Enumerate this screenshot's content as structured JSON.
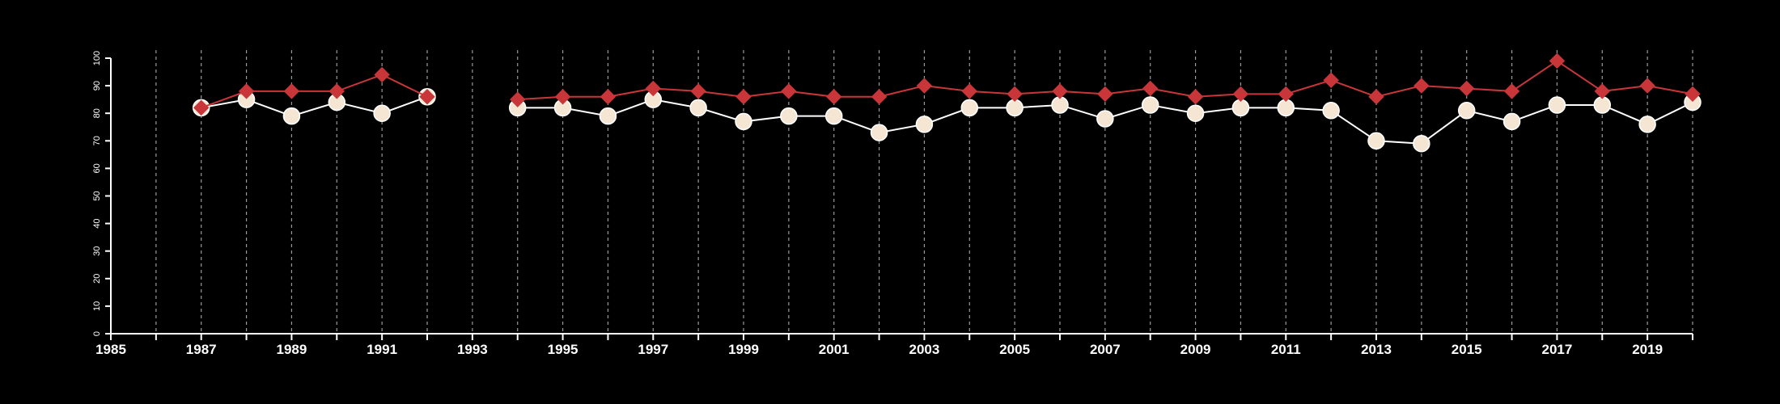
{
  "chart_data": {
    "type": "line",
    "title": "",
    "xlabel": "",
    "ylabel": "",
    "xlim": [
      1985,
      2020
    ],
    "ylim": [
      0,
      100
    ],
    "x_ticks": [
      "1985",
      "1987",
      "1989",
      "1991",
      "1993",
      "1995",
      "1997",
      "1999",
      "2001",
      "2003",
      "2005",
      "2007",
      "2009",
      "2011",
      "2013",
      "2015",
      "2017",
      "2019"
    ],
    "y_ticks": [
      "0",
      "10",
      "20",
      "30",
      "40",
      "50",
      "60",
      "70",
      "80",
      "90",
      "100"
    ],
    "grid": "vertical dashed lines at every year",
    "legend": "none",
    "series": [
      {
        "marker": "diamond",
        "color": "#c8363a",
        "points": [
          [
            1987,
            82
          ],
          [
            1988,
            88
          ],
          [
            1989,
            88
          ],
          [
            1990,
            88
          ],
          [
            1991,
            94
          ],
          [
            1992,
            86
          ],
          [
            1994,
            85
          ],
          [
            1995,
            86
          ],
          [
            1996,
            86
          ],
          [
            1997,
            89
          ],
          [
            1998,
            88
          ],
          [
            1999,
            86
          ],
          [
            2000,
            88
          ],
          [
            2001,
            86
          ],
          [
            2002,
            86
          ],
          [
            2003,
            90
          ],
          [
            2004,
            88
          ],
          [
            2005,
            87
          ],
          [
            2006,
            88
          ],
          [
            2007,
            87
          ],
          [
            2008,
            89
          ],
          [
            2009,
            86
          ],
          [
            2010,
            87
          ],
          [
            2011,
            87
          ],
          [
            2012,
            92
          ],
          [
            2013,
            86
          ],
          [
            2014,
            90
          ],
          [
            2015,
            89
          ],
          [
            2016,
            88
          ],
          [
            2017,
            99
          ],
          [
            2018,
            88
          ],
          [
            2019,
            90
          ],
          [
            2020,
            87
          ]
        ]
      },
      {
        "marker": "circle",
        "color": "#f5e6d3",
        "points": [
          [
            1987,
            82
          ],
          [
            1988,
            85
          ],
          [
            1989,
            79
          ],
          [
            1990,
            84
          ],
          [
            1991,
            80
          ],
          [
            1992,
            86
          ],
          [
            1994,
            82
          ],
          [
            1995,
            82
          ],
          [
            1996,
            79
          ],
          [
            1997,
            85
          ],
          [
            1998,
            82
          ],
          [
            1999,
            77
          ],
          [
            2000,
            79
          ],
          [
            2001,
            79
          ],
          [
            2002,
            73
          ],
          [
            2003,
            76
          ],
          [
            2004,
            82
          ],
          [
            2005,
            82
          ],
          [
            2006,
            83
          ],
          [
            2007,
            78
          ],
          [
            2008,
            83
          ],
          [
            2009,
            80
          ],
          [
            2010,
            82
          ],
          [
            2011,
            82
          ],
          [
            2012,
            81
          ],
          [
            2013,
            70
          ],
          [
            2014,
            69
          ],
          [
            2015,
            81
          ],
          [
            2016,
            77
          ],
          [
            2017,
            83
          ],
          [
            2018,
            83
          ],
          [
            2019,
            76
          ],
          [
            2020,
            84
          ]
        ]
      }
    ]
  }
}
